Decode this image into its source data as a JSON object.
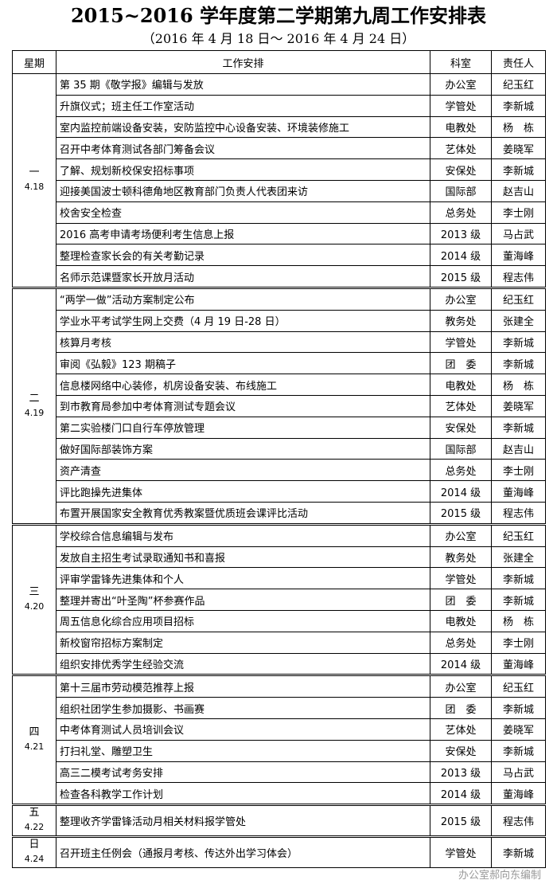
{
  "header": {
    "title": "2015~2016 学年度第二学期第九周工作安排表",
    "subtitle": "（2016 年 4 月 18 日～ 2016 年 4 月 24 日）"
  },
  "table": {
    "columns": [
      "星期",
      "工作安排",
      "科室",
      "责任人"
    ],
    "days": [
      {
        "day": "一",
        "date": "4.18",
        "items": [
          [
            "第 35 期《敬学报》编辑与发放",
            "办公室",
            "纪玉红"
          ],
          [
            "升旗仪式；班主任工作室活动",
            "学管处",
            "李新城"
          ],
          [
            "室内监控前端设备安装，安防监控中心设备安装、环境装修施工",
            "电教处",
            "杨　栋"
          ],
          [
            "召开中考体育测试各部门筹备会议",
            "艺体处",
            "姜晓军"
          ],
          [
            "了解、规划新校保安招标事项",
            "安保处",
            "李新城"
          ],
          [
            "迎接美国波士顿科德角地区教育部门负责人代表团来访",
            "国际部",
            "赵吉山"
          ],
          [
            "校舍安全检查",
            "总务处",
            "李士刚"
          ],
          [
            "2016 高考申请考场便利考生信息上报",
            "2013 级",
            "马占武"
          ],
          [
            "整理检查家长会的有关考勤记录",
            "2014 级",
            "董海峰"
          ],
          [
            "名师示范课暨家长开放月活动",
            "2015 级",
            "程志伟"
          ]
        ]
      },
      {
        "day": "二",
        "date": "4.19",
        "items": [
          [
            "“两学一做”活动方案制定公布",
            "办公室",
            "纪玉红"
          ],
          [
            "学业水平考试学生网上交费（4 月 19 日-28 日）",
            "教务处",
            "张建全"
          ],
          [
            "核算月考核",
            "学管处",
            "李新城"
          ],
          [
            "审阅《弘毅》123 期稿子",
            "团　委",
            "李新城"
          ],
          [
            "信息楼网络中心装修，机房设备安装、布线施工",
            "电教处",
            "杨　栋"
          ],
          [
            "到市教育局参加中考体育测试专题会议",
            "艺体处",
            "姜晓军"
          ],
          [
            "第二实验楼门口自行车停放管理",
            "安保处",
            "李新城"
          ],
          [
            "做好国际部装饰方案",
            "国际部",
            "赵吉山"
          ],
          [
            "资产清查",
            "总务处",
            "李士刚"
          ],
          [
            "评比跑操先进集体",
            "2014 级",
            "董海峰"
          ],
          [
            "布置开展国家安全教育优秀教案暨优质班会课评比活动",
            "2015 级",
            "程志伟"
          ]
        ]
      },
      {
        "day": "三",
        "date": "4.20",
        "items": [
          [
            "学校综合信息编辑与发布",
            "办公室",
            "纪玉红"
          ],
          [
            "发放自主招生考试录取通知书和喜报",
            "教务处",
            "张建全"
          ],
          [
            "评审学雷锋先进集体和个人",
            "学管处",
            "李新城"
          ],
          [
            "整理并寄出“叶圣陶”杯参赛作品",
            "团　委",
            "李新城"
          ],
          [
            "周五信息化综合应用项目招标",
            "电教处",
            "杨　栋"
          ],
          [
            "新校窗帘招标方案制定",
            "总务处",
            "李士刚"
          ],
          [
            "组织安排优秀学生经验交流",
            "2014 级",
            "董海峰"
          ]
        ]
      },
      {
        "day": "四",
        "date": "4.21",
        "items": [
          [
            "第十三届市劳动模范推荐上报",
            "办公室",
            "纪玉红"
          ],
          [
            "组织社团学生参加摄影、书画赛",
            "团　委",
            "李新城"
          ],
          [
            "中考体育测试人员培训会议",
            "艺体处",
            "姜晓军"
          ],
          [
            "打扫礼堂、雕塑卫生",
            "安保处",
            "李新城"
          ],
          [
            "高三二模考试考务安排",
            "2013 级",
            "马占武"
          ],
          [
            "检查各科教学工作计划",
            "2014 级",
            "董海峰"
          ]
        ]
      },
      {
        "day": "五",
        "date": "4.22",
        "items": [
          [
            "整理收齐学雷锋活动月相关材料报学管处",
            "2015 级",
            "程志伟"
          ]
        ]
      },
      {
        "day": "日",
        "date": "4.24",
        "items": [
          [
            "召开班主任例会（通报月考核、传达外出学习体会）",
            "学管处",
            "李新城"
          ]
        ]
      }
    ]
  },
  "footer": "办公室郝向东编制"
}
